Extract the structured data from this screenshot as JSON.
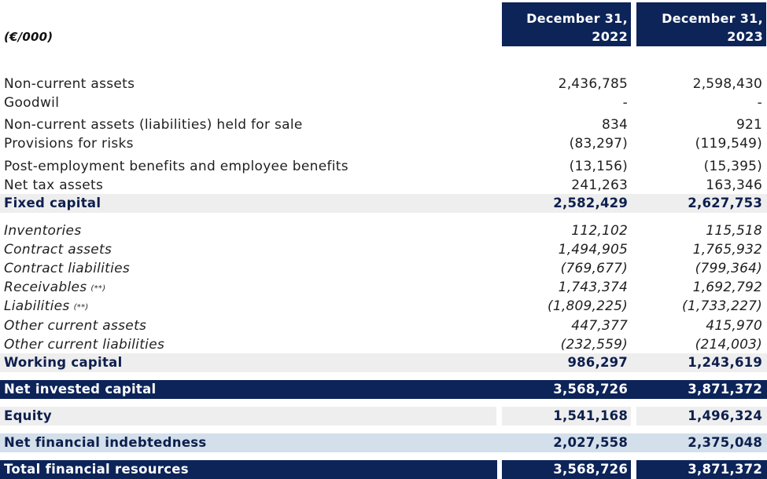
{
  "header": {
    "unit_label": "(€/000)",
    "col1": "December 31, 2022",
    "col2": "December 31, 2023"
  },
  "rows": [
    {
      "label": "Non-current assets",
      "v2022": "2,436,785",
      "v2023": "2,598,430"
    },
    {
      "label": "Goodwil",
      "v2022": "-",
      "v2023": "-"
    },
    {
      "label": "Non-current assets (liabilities) held for sale",
      "v2022": "834",
      "v2023": "921"
    },
    {
      "label": "Provisions for risks",
      "v2022": "(83,297)",
      "v2023": "(119,549)"
    },
    {
      "label": "Post-employment benefits and employee benefits",
      "v2022": "(13,156)",
      "v2023": "(15,395)"
    },
    {
      "label": "Net tax assets",
      "v2022": "241,263",
      "v2023": "163,346"
    },
    {
      "label": "Fixed capital",
      "v2022": "2,582,429",
      "v2023": "2,627,753"
    },
    {
      "label": "Inventories",
      "v2022": "112,102",
      "v2023": "115,518"
    },
    {
      "label": "Contract assets",
      "v2022": "1,494,905",
      "v2023": "1,765,932"
    },
    {
      "label": "Contract liabilities",
      "v2022": "(769,677)",
      "v2023": "(799,364)"
    },
    {
      "label": "Receivables",
      "note": "(**)",
      "v2022": "1,743,374",
      "v2023": "1,692,792"
    },
    {
      "label": "Liabilities",
      "note": "(**)",
      "v2022": "(1,809,225)",
      "v2023": "(1,733,227)"
    },
    {
      "label": "Other current assets",
      "v2022": "447,377",
      "v2023": "415,970"
    },
    {
      "label": "Other current liabilities",
      "v2022": "(232,559)",
      "v2023": "(214,003)"
    },
    {
      "label": "Working capital",
      "v2022": "986,297",
      "v2023": "1,243,619"
    },
    {
      "label": "Net invested capital",
      "v2022": "3,568,726",
      "v2023": "3,871,372"
    },
    {
      "label": "Equity",
      "v2022": "1,541,168",
      "v2023": "1,496,324"
    },
    {
      "label": "Net financial indebtedness",
      "v2022": "2,027,558",
      "v2023": "2,375,048"
    },
    {
      "label": "Total financial resources",
      "v2022": "3,568,726",
      "v2023": "3,871,372"
    }
  ]
}
